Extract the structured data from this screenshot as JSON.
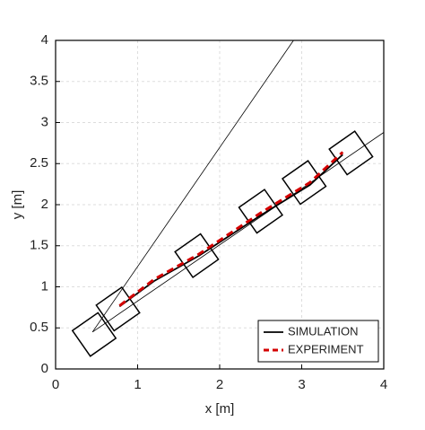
{
  "chart_data": {
    "type": "line",
    "xlabel": "x [m]",
    "ylabel": "y [m]",
    "xlim": [
      0,
      4
    ],
    "ylim": [
      0,
      4
    ],
    "xticks": [
      0,
      1,
      2,
      3,
      4
    ],
    "yticks": [
      0,
      0.5,
      1,
      1.5,
      2,
      2.5,
      3,
      3.5,
      4
    ],
    "grid": true,
    "legend": "lower right",
    "series": [
      {
        "name": "SIMULATION",
        "color": "#000000",
        "dash": false,
        "x": [
          0.78,
          1.2,
          1.75,
          2.5,
          3.1,
          3.5
        ],
        "values": [
          0.76,
          1.07,
          1.38,
          1.87,
          2.24,
          2.61
        ]
      },
      {
        "name": "EXPERIMENT",
        "color": "#d40000",
        "dash": true,
        "x": [
          0.78,
          1.2,
          1.75,
          2.5,
          3.1,
          3.5
        ],
        "values": [
          0.77,
          1.09,
          1.4,
          1.9,
          2.27,
          2.64
        ]
      }
    ],
    "reference_lines": [
      {
        "x": [
          0.45,
          2.9
        ],
        "values": [
          0.45,
          4
        ]
      },
      {
        "x": [
          0.45,
          4
        ],
        "values": [
          0.45,
          2.88
        ]
      }
    ],
    "footprints": {
      "x": [
        0.47,
        0.76,
        1.72,
        2.5,
        3.03,
        3.6
      ],
      "values": [
        0.42,
        0.73,
        1.38,
        1.92,
        2.27,
        2.63
      ],
      "size": 0.38,
      "angle": 35
    }
  }
}
